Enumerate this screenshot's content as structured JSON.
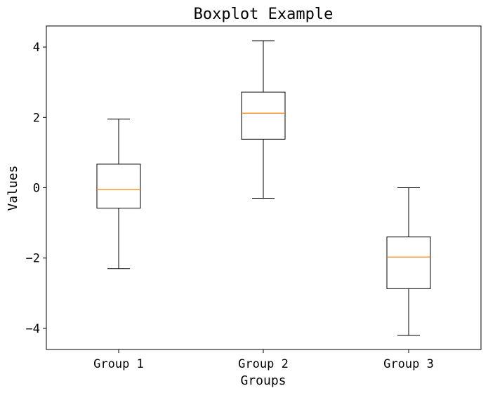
{
  "chart_data": {
    "type": "box",
    "title": "Boxplot Example",
    "xlabel": "Groups",
    "ylabel": "Values",
    "ylim": [
      -4.6,
      4.6
    ],
    "yticks": [
      4,
      2,
      0,
      -2,
      -4
    ],
    "ytick_labels": [
      "4",
      "2",
      "0",
      "−2",
      "−4"
    ],
    "grid": false,
    "categories": [
      "Group 1",
      "Group 2",
      "Group 3"
    ],
    "boxes": [
      {
        "name": "Group 1",
        "whisker_low": -2.3,
        "q1": -0.58,
        "median": -0.05,
        "q3": 0.67,
        "whisker_high": 1.95
      },
      {
        "name": "Group 2",
        "whisker_low": -0.3,
        "q1": 1.38,
        "median": 2.12,
        "q3": 2.72,
        "whisker_high": 4.18
      },
      {
        "name": "Group 3",
        "whisker_low": -4.2,
        "q1": -2.87,
        "median": -1.97,
        "q3": -1.4,
        "whisker_high": 0.0
      }
    ],
    "colors": {
      "box": "#000000",
      "median": "#ff7f0e"
    }
  }
}
